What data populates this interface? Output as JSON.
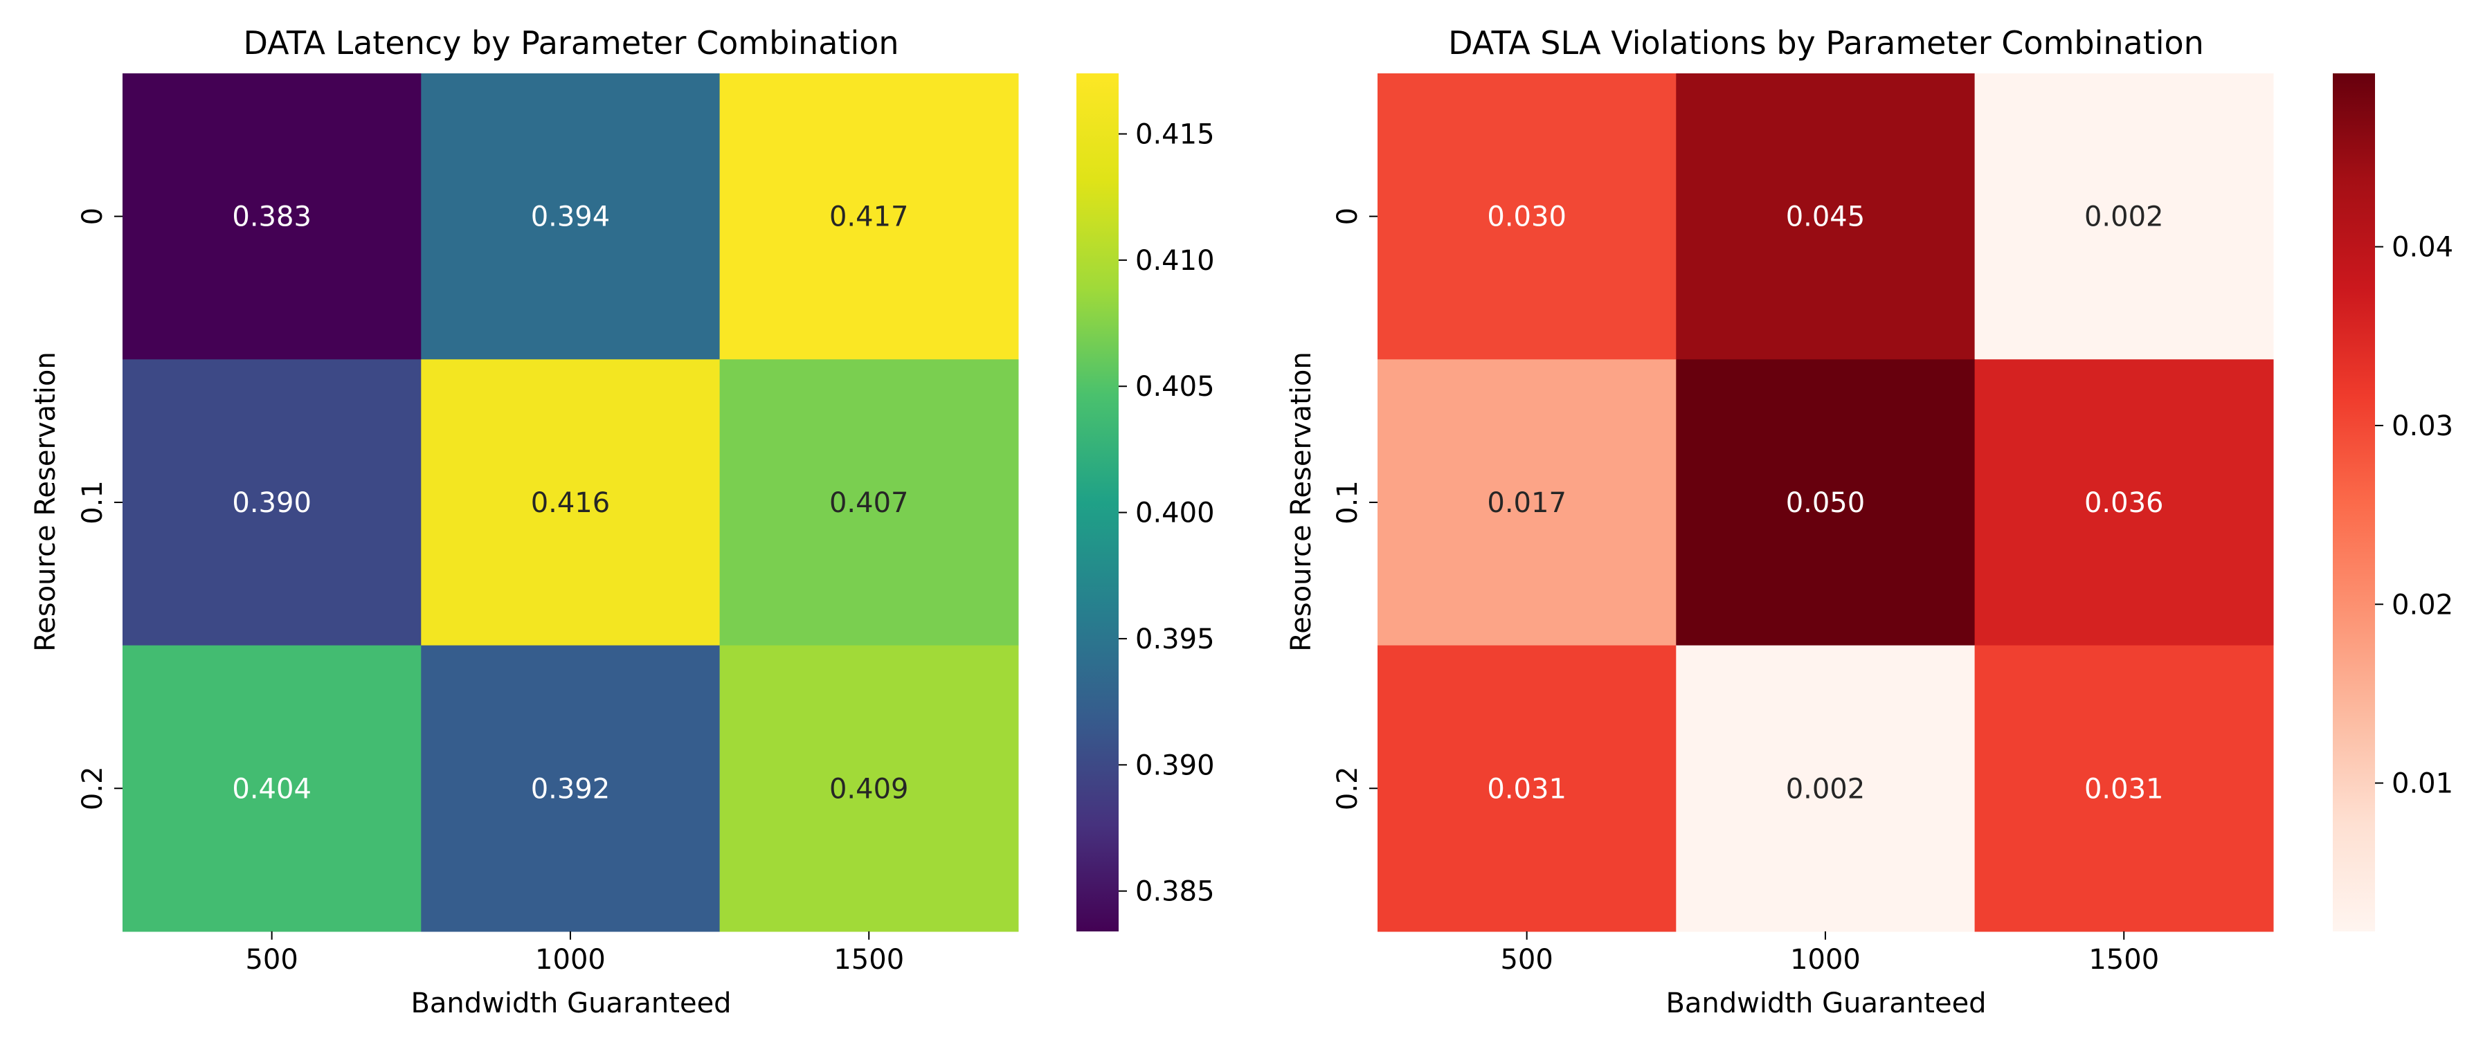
{
  "chart_data": [
    {
      "type": "heatmap",
      "title": "DATA Latency by Parameter Combination",
      "xlabel": "Bandwidth Guaranteed",
      "ylabel": "Resource Reservation",
      "x_categories": [
        "500",
        "1000",
        "1500"
      ],
      "y_categories": [
        "0",
        "0.1",
        "0.2"
      ],
      "values": [
        [
          0.383,
          0.394,
          0.417
        ],
        [
          0.39,
          0.416,
          0.407
        ],
        [
          0.404,
          0.392,
          0.409
        ]
      ],
      "labels": [
        [
          "0.383",
          "0.394",
          "0.417"
        ],
        [
          "0.390",
          "0.416",
          "0.407"
        ],
        [
          "0.404",
          "0.392",
          "0.409"
        ]
      ],
      "colormap": "viridis",
      "vmin": 0.3834,
      "vmax": 0.4174,
      "colorbar_ticks": [
        "0.385",
        "0.390",
        "0.395",
        "0.400",
        "0.405",
        "0.410",
        "0.415"
      ],
      "grid": false
    },
    {
      "type": "heatmap",
      "title": "DATA SLA Violations by Parameter Combination",
      "xlabel": "Bandwidth Guaranteed",
      "ylabel": "Resource Reservation",
      "x_categories": [
        "500",
        "1000",
        "1500"
      ],
      "y_categories": [
        "0",
        "0.1",
        "0.2"
      ],
      "values": [
        [
          0.03,
          0.045,
          0.002
        ],
        [
          0.017,
          0.05,
          0.036
        ],
        [
          0.031,
          0.002,
          0.031
        ]
      ],
      "labels": [
        [
          "0.030",
          "0.045",
          "0.002"
        ],
        [
          "0.017",
          "0.050",
          "0.036"
        ],
        [
          "0.031",
          "0.002",
          "0.031"
        ]
      ],
      "colormap": "reds",
      "vmin": 0.0017,
      "vmax": 0.0497,
      "colorbar_ticks": [
        "0.01",
        "0.02",
        "0.03",
        "0.04"
      ],
      "grid": false
    }
  ]
}
